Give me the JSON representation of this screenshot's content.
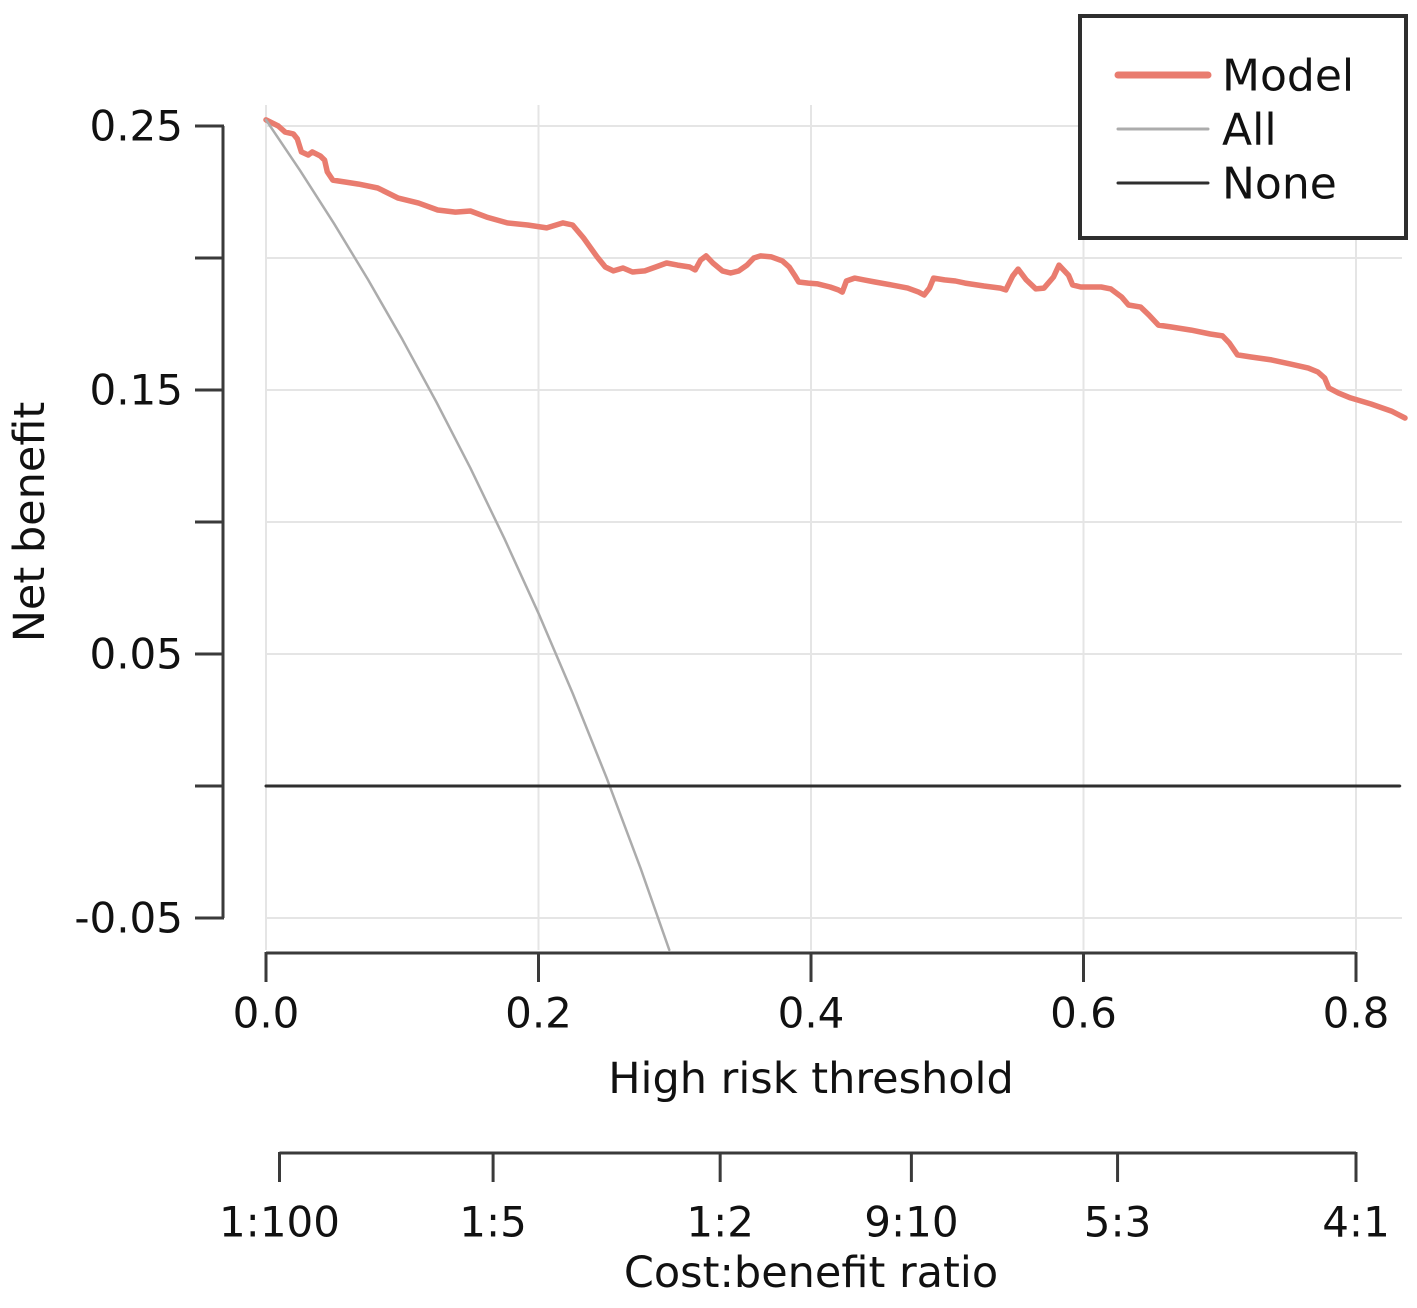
{
  "colors": {
    "model": "#E97C6F",
    "all": "#ACACAC",
    "none": "#2E2E2E",
    "axis": "#3A3A3A",
    "grid": "#E5E5E5",
    "text": "#111111",
    "background": "#FFFFFF",
    "legend_border": "#2E2E2E"
  },
  "legend": {
    "entries": [
      {
        "label": "Model",
        "color": "#E97C6F"
      },
      {
        "label": "All",
        "color": "#ACACAC"
      },
      {
        "label": "None",
        "color": "#2E2E2E"
      }
    ]
  },
  "chart_data": {
    "type": "line",
    "title": "",
    "xlabel": "High risk threshold",
    "ylabel": "Net benefit",
    "x2label": "Cost:benefit ratio",
    "xlim": [
      0,
      0.84
    ],
    "ylim": [
      -0.065,
      0.26
    ],
    "grid": true,
    "legend_position": "top-right",
    "x_ticks": [
      {
        "value": 0.0,
        "label": "0.0"
      },
      {
        "value": 0.2,
        "label": "0.2"
      },
      {
        "value": 0.4,
        "label": "0.4"
      },
      {
        "value": 0.6,
        "label": "0.6"
      },
      {
        "value": 0.8,
        "label": "0.8"
      }
    ],
    "y_ticks": [
      {
        "value": 0.25,
        "label": "0.25"
      },
      {
        "value": 0.2,
        "label": ""
      },
      {
        "value": 0.15,
        "label": "0.15"
      },
      {
        "value": 0.1,
        "label": ""
      },
      {
        "value": 0.05,
        "label": "0.05"
      },
      {
        "value": 0.0,
        "label": ""
      },
      {
        "value": -0.05,
        "label": "-0.05"
      }
    ],
    "cost_benefit_ticks": [
      {
        "label": "1:100",
        "threshold": 0.0099
      },
      {
        "label": "1:5",
        "threshold": 0.16667
      },
      {
        "label": "1:2",
        "threshold": 0.33333
      },
      {
        "label": "9:10",
        "threshold": 0.47368
      },
      {
        "label": "5:3",
        "threshold": 0.625
      },
      {
        "label": "4:1",
        "threshold": 0.8
      }
    ],
    "series": [
      {
        "name": "Model",
        "color": "#E97C6F",
        "points": [
          [
            0.0,
            0.2523
          ],
          [
            0.009,
            0.25
          ],
          [
            0.014,
            0.2477
          ],
          [
            0.02,
            0.247
          ],
          [
            0.023,
            0.2451
          ],
          [
            0.026,
            0.2402
          ],
          [
            0.031,
            0.239
          ],
          [
            0.034,
            0.2402
          ],
          [
            0.04,
            0.2386
          ],
          [
            0.043,
            0.2371
          ],
          [
            0.045,
            0.2326
          ],
          [
            0.049,
            0.2295
          ],
          [
            0.058,
            0.2288
          ],
          [
            0.068,
            0.228
          ],
          [
            0.082,
            0.2265
          ],
          [
            0.097,
            0.2227
          ],
          [
            0.112,
            0.2208
          ],
          [
            0.126,
            0.2182
          ],
          [
            0.139,
            0.2174
          ],
          [
            0.15,
            0.2178
          ],
          [
            0.162,
            0.2155
          ],
          [
            0.177,
            0.2133
          ],
          [
            0.192,
            0.2125
          ],
          [
            0.206,
            0.2114
          ],
          [
            0.218,
            0.2133
          ],
          [
            0.225,
            0.2125
          ],
          [
            0.233,
            0.2076
          ],
          [
            0.243,
            0.2004
          ],
          [
            0.249,
            0.1966
          ],
          [
            0.255,
            0.1951
          ],
          [
            0.262,
            0.1962
          ],
          [
            0.269,
            0.1947
          ],
          [
            0.278,
            0.1951
          ],
          [
            0.286,
            0.1966
          ],
          [
            0.294,
            0.1981
          ],
          [
            0.302,
            0.1973
          ],
          [
            0.311,
            0.1966
          ],
          [
            0.315,
            0.1955
          ],
          [
            0.319,
            0.1992
          ],
          [
            0.323,
            0.2008
          ],
          [
            0.328,
            0.1981
          ],
          [
            0.335,
            0.1951
          ],
          [
            0.341,
            0.1943
          ],
          [
            0.347,
            0.1951
          ],
          [
            0.353,
            0.1973
          ],
          [
            0.358,
            0.2
          ],
          [
            0.363,
            0.2008
          ],
          [
            0.371,
            0.2004
          ],
          [
            0.379,
            0.1989
          ],
          [
            0.384,
            0.1966
          ],
          [
            0.388,
            0.1935
          ],
          [
            0.391,
            0.1909
          ],
          [
            0.398,
            0.1905
          ],
          [
            0.405,
            0.1902
          ],
          [
            0.414,
            0.189
          ],
          [
            0.42,
            0.1879
          ],
          [
            0.423,
            0.1871
          ],
          [
            0.426,
            0.1913
          ],
          [
            0.432,
            0.1924
          ],
          [
            0.439,
            0.1917
          ],
          [
            0.447,
            0.1909
          ],
          [
            0.459,
            0.1898
          ],
          [
            0.471,
            0.1886
          ],
          [
            0.479,
            0.1871
          ],
          [
            0.483,
            0.186
          ],
          [
            0.487,
            0.1886
          ],
          [
            0.49,
            0.1924
          ],
          [
            0.498,
            0.1917
          ],
          [
            0.506,
            0.1913
          ],
          [
            0.513,
            0.1905
          ],
          [
            0.527,
            0.1894
          ],
          [
            0.539,
            0.1886
          ],
          [
            0.543,
            0.1879
          ],
          [
            0.548,
            0.1932
          ],
          [
            0.552,
            0.1958
          ],
          [
            0.558,
            0.1917
          ],
          [
            0.565,
            0.1883
          ],
          [
            0.571,
            0.1886
          ],
          [
            0.578,
            0.1928
          ],
          [
            0.582,
            0.1973
          ],
          [
            0.589,
            0.1935
          ],
          [
            0.592,
            0.1898
          ],
          [
            0.598,
            0.189
          ],
          [
            0.613,
            0.189
          ],
          [
            0.62,
            0.1883
          ],
          [
            0.628,
            0.1852
          ],
          [
            0.633,
            0.1822
          ],
          [
            0.642,
            0.1814
          ],
          [
            0.648,
            0.1784
          ],
          [
            0.655,
            0.1746
          ],
          [
            0.664,
            0.1739
          ],
          [
            0.679,
            0.1727
          ],
          [
            0.693,
            0.1712
          ],
          [
            0.702,
            0.1705
          ],
          [
            0.707,
            0.1678
          ],
          [
            0.713,
            0.1633
          ],
          [
            0.723,
            0.1625
          ],
          [
            0.738,
            0.1614
          ],
          [
            0.752,
            0.1598
          ],
          [
            0.765,
            0.1583
          ],
          [
            0.772,
            0.1568
          ],
          [
            0.777,
            0.1545
          ],
          [
            0.78,
            0.1508
          ],
          [
            0.787,
            0.1489
          ],
          [
            0.796,
            0.147
          ],
          [
            0.811,
            0.1447
          ],
          [
            0.826,
            0.142
          ],
          [
            0.836,
            0.1394
          ]
        ]
      },
      {
        "name": "All",
        "color": "#ACACAC",
        "points": [
          [
            0.0,
            0.2523
          ],
          [
            0.025,
            0.2331
          ],
          [
            0.05,
            0.213
          ],
          [
            0.075,
            0.1917
          ],
          [
            0.1,
            0.1692
          ],
          [
            0.125,
            0.1455
          ],
          [
            0.15,
            0.1204
          ],
          [
            0.175,
            0.0937
          ],
          [
            0.2,
            0.0654
          ],
          [
            0.225,
            0.0352
          ],
          [
            0.25,
            0.0031
          ],
          [
            0.275,
            -0.0313
          ],
          [
            0.296,
            -0.0621
          ]
        ]
      },
      {
        "name": "None",
        "color": "#2E2E2E",
        "points": [
          [
            0.0,
            0.0
          ],
          [
            0.832,
            0.0
          ]
        ]
      }
    ]
  }
}
